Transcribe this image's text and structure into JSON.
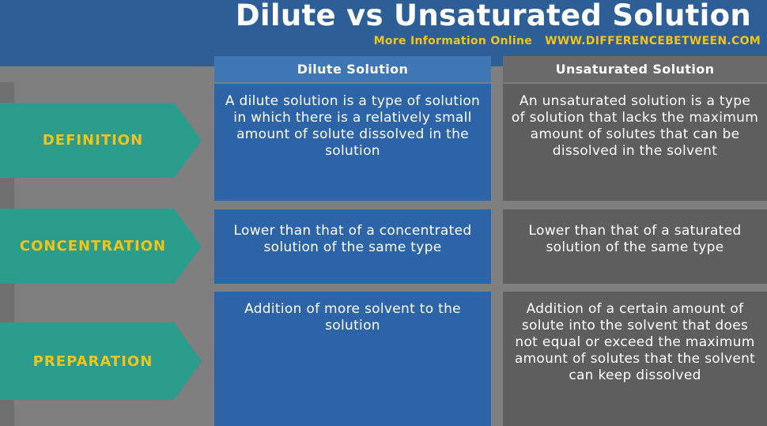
{
  "header": {
    "title": "Dilute vs Unsaturated Solution",
    "more_info": "More Information Online",
    "website": "WWW.DIFFERENCEBETWEEN.COM"
  },
  "columns": {
    "dilute": "Dilute Solution",
    "unsaturated": "Unsaturated Solution"
  },
  "rows": [
    {
      "label": "DEFINITION",
      "dilute": "A dilute solution is a type of solution in which there is a relatively small amount of solute dissolved in the solution",
      "unsaturated": "An unsaturated solution is a type of solution that lacks the maximum amount of solutes that can be dissolved in the solvent"
    },
    {
      "label": "CONCENTRATION",
      "dilute": "Lower than that of a concentrated solution of the same type",
      "unsaturated": "Lower than that of a saturated solution of the same type"
    },
    {
      "label": "PREPARATION",
      "dilute": "Addition of more solvent to the solution",
      "unsaturated": "Addition of a certain amount of solute into the solvent that does not equal or exceed the maximum amount of solutes that the solvent can keep dissolved"
    }
  ],
  "colors": {
    "header_bg": "#2d5f96",
    "accent_yellow": "#f2c418",
    "label_teal": "#2a9d8c",
    "dilute_blue": "#2d64a8",
    "unsat_gray": "#5e5e5e"
  }
}
